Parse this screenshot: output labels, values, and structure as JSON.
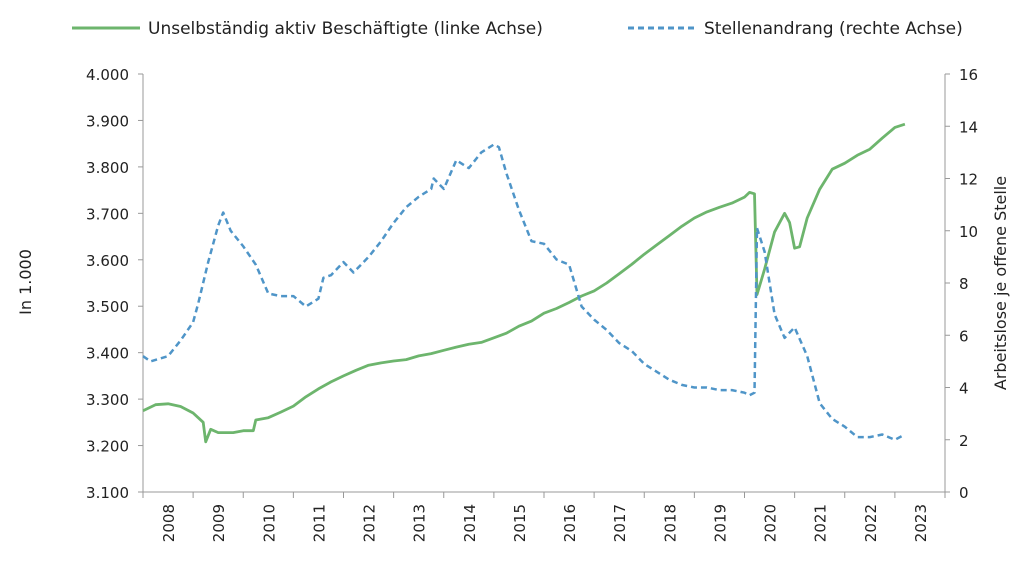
{
  "chart_data": {
    "type": "line",
    "ylabel_left": "In 1.000",
    "ylabel_right": "Arbeitslose je offene Stelle",
    "ylim_left": [
      3100,
      4000
    ],
    "ylim_right": [
      0,
      16
    ],
    "yticks_left": [
      "3.100",
      "3.200",
      "3.300",
      "3.400",
      "3.500",
      "3.600",
      "3.700",
      "3.800",
      "3.900",
      "4.000"
    ],
    "yticks_right": [
      "0",
      "2",
      "4",
      "6",
      "8",
      "10",
      "12",
      "14",
      "16"
    ],
    "xticks": [
      "2008",
      "2009",
      "2010",
      "2011",
      "2012",
      "2013",
      "2014",
      "2015",
      "2016",
      "2017",
      "2018",
      "2019",
      "2020",
      "2021",
      "2022",
      "2023"
    ],
    "xlim": [
      2008,
      2024
    ],
    "grid": false,
    "legend_position": "top",
    "series": [
      {
        "name": "Unselbständig aktiv Beschäftigte (linke Achse)",
        "axis": "left",
        "color": "#6db56d",
        "style": "solid",
        "points": [
          [
            2008.0,
            3275
          ],
          [
            2008.25,
            3288
          ],
          [
            2008.5,
            3290
          ],
          [
            2008.75,
            3284
          ],
          [
            2009.0,
            3270
          ],
          [
            2009.2,
            3250
          ],
          [
            2009.25,
            3208
          ],
          [
            2009.35,
            3235
          ],
          [
            2009.5,
            3228
          ],
          [
            2009.8,
            3228
          ],
          [
            2010.0,
            3232
          ],
          [
            2010.2,
            3232
          ],
          [
            2010.25,
            3255
          ],
          [
            2010.5,
            3260
          ],
          [
            2010.75,
            3272
          ],
          [
            2011.0,
            3285
          ],
          [
            2011.25,
            3305
          ],
          [
            2011.5,
            3322
          ],
          [
            2011.75,
            3337
          ],
          [
            2012.0,
            3350
          ],
          [
            2012.25,
            3362
          ],
          [
            2012.5,
            3373
          ],
          [
            2012.75,
            3378
          ],
          [
            2013.0,
            3382
          ],
          [
            2013.25,
            3385
          ],
          [
            2013.5,
            3393
          ],
          [
            2013.75,
            3398
          ],
          [
            2014.0,
            3405
          ],
          [
            2014.25,
            3412
          ],
          [
            2014.5,
            3418
          ],
          [
            2014.75,
            3422
          ],
          [
            2015.0,
            3432
          ],
          [
            2015.25,
            3442
          ],
          [
            2015.5,
            3457
          ],
          [
            2015.75,
            3468
          ],
          [
            2016.0,
            3485
          ],
          [
            2016.25,
            3495
          ],
          [
            2016.5,
            3508
          ],
          [
            2016.75,
            3522
          ],
          [
            2017.0,
            3533
          ],
          [
            2017.25,
            3550
          ],
          [
            2017.5,
            3570
          ],
          [
            2017.75,
            3590
          ],
          [
            2018.0,
            3612
          ],
          [
            2018.25,
            3632
          ],
          [
            2018.5,
            3652
          ],
          [
            2018.75,
            3672
          ],
          [
            2019.0,
            3690
          ],
          [
            2019.25,
            3703
          ],
          [
            2019.5,
            3713
          ],
          [
            2019.75,
            3722
          ],
          [
            2020.0,
            3735
          ],
          [
            2020.1,
            3745
          ],
          [
            2020.2,
            3742
          ],
          [
            2020.25,
            3525
          ],
          [
            2020.4,
            3580
          ],
          [
            2020.6,
            3660
          ],
          [
            2020.8,
            3700
          ],
          [
            2020.9,
            3680
          ],
          [
            2021.0,
            3625
          ],
          [
            2021.1,
            3628
          ],
          [
            2021.25,
            3690
          ],
          [
            2021.5,
            3752
          ],
          [
            2021.75,
            3795
          ],
          [
            2022.0,
            3808
          ],
          [
            2022.25,
            3825
          ],
          [
            2022.5,
            3838
          ],
          [
            2022.75,
            3862
          ],
          [
            2023.0,
            3885
          ],
          [
            2023.2,
            3892
          ]
        ]
      },
      {
        "name": "Stellenandrang (rechte Achse)",
        "axis": "right",
        "color": "#4f95c8",
        "style": "dashed",
        "points": [
          [
            2008.0,
            5.2
          ],
          [
            2008.15,
            5.0
          ],
          [
            2008.5,
            5.2
          ],
          [
            2008.75,
            5.8
          ],
          [
            2009.0,
            6.5
          ],
          [
            2009.1,
            7.2
          ],
          [
            2009.3,
            8.8
          ],
          [
            2009.5,
            10.2
          ],
          [
            2009.6,
            10.7
          ],
          [
            2009.75,
            10.0
          ],
          [
            2010.0,
            9.4
          ],
          [
            2010.25,
            8.7
          ],
          [
            2010.5,
            7.6
          ],
          [
            2010.75,
            7.5
          ],
          [
            2011.0,
            7.5
          ],
          [
            2011.25,
            7.1
          ],
          [
            2011.5,
            7.4
          ],
          [
            2011.6,
            8.2
          ],
          [
            2011.75,
            8.3
          ],
          [
            2012.0,
            8.8
          ],
          [
            2012.2,
            8.4
          ],
          [
            2012.5,
            9.0
          ],
          [
            2012.75,
            9.6
          ],
          [
            2013.0,
            10.3
          ],
          [
            2013.25,
            10.9
          ],
          [
            2013.5,
            11.3
          ],
          [
            2013.75,
            11.6
          ],
          [
            2013.8,
            12.0
          ],
          [
            2014.0,
            11.6
          ],
          [
            2014.25,
            12.7
          ],
          [
            2014.5,
            12.4
          ],
          [
            2014.75,
            13.0
          ],
          [
            2015.0,
            13.3
          ],
          [
            2015.1,
            13.2
          ],
          [
            2015.25,
            12.2
          ],
          [
            2015.5,
            10.8
          ],
          [
            2015.75,
            9.6
          ],
          [
            2016.0,
            9.5
          ],
          [
            2016.25,
            8.9
          ],
          [
            2016.5,
            8.7
          ],
          [
            2016.75,
            7.1
          ],
          [
            2017.0,
            6.6
          ],
          [
            2017.25,
            6.2
          ],
          [
            2017.5,
            5.7
          ],
          [
            2017.75,
            5.4
          ],
          [
            2018.0,
            4.9
          ],
          [
            2018.25,
            4.6
          ],
          [
            2018.5,
            4.3
          ],
          [
            2018.75,
            4.1
          ],
          [
            2019.0,
            4.0
          ],
          [
            2019.25,
            4.0
          ],
          [
            2019.5,
            3.9
          ],
          [
            2019.75,
            3.9
          ],
          [
            2020.0,
            3.8
          ],
          [
            2020.1,
            3.7
          ],
          [
            2020.2,
            3.8
          ],
          [
            2020.25,
            10.1
          ],
          [
            2020.4,
            9.2
          ],
          [
            2020.6,
            6.8
          ],
          [
            2020.8,
            5.9
          ],
          [
            2021.0,
            6.3
          ],
          [
            2021.25,
            5.2
          ],
          [
            2021.5,
            3.4
          ],
          [
            2021.75,
            2.8
          ],
          [
            2022.0,
            2.5
          ],
          [
            2022.25,
            2.1
          ],
          [
            2022.5,
            2.1
          ],
          [
            2022.75,
            2.2
          ],
          [
            2023.0,
            2.0
          ],
          [
            2023.2,
            2.2
          ]
        ]
      }
    ]
  }
}
